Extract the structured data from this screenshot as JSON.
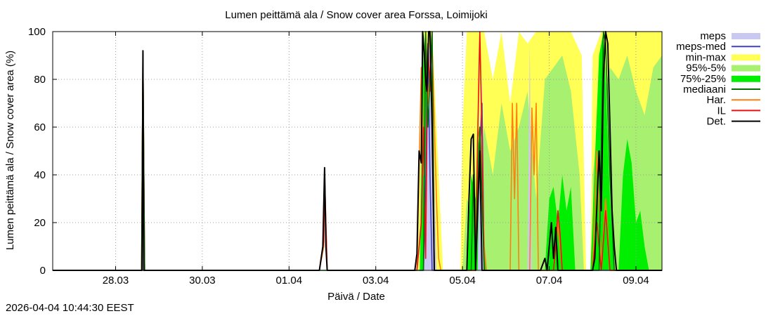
{
  "chart_data": {
    "type": "area",
    "title": "Lumen peittämä ala / Snow cover area Forssa, Loimijoki",
    "xlabel": "Päivä / Date",
    "ylabel": "Lumen peittämä ala / Snow cover area (%)",
    "ylim": [
      0,
      100
    ],
    "y_ticks": [
      "0",
      "20",
      "40",
      "60",
      "80",
      "100"
    ],
    "xlim_days": [
      -1.45,
      12.6
    ],
    "x_ticks": [
      {
        "day": 0,
        "label": "28.03"
      },
      {
        "day": 2,
        "label": "30.03"
      },
      {
        "day": 4,
        "label": "01.04"
      },
      {
        "day": 6,
        "label": "03.04"
      },
      {
        "day": 8,
        "label": "05.04"
      },
      {
        "day": 10,
        "label": "07.04"
      },
      {
        "day": 12,
        "label": "09.04"
      }
    ],
    "grid": true,
    "legend_position": "right",
    "legend": [
      {
        "key": "meps",
        "label": "meps",
        "color": "#c8c8f0",
        "style": "band"
      },
      {
        "key": "meps_med",
        "label": "meps-med",
        "color": "#4040c0",
        "style": "line"
      },
      {
        "key": "minmax",
        "label": "min-max",
        "color": "#ffff55",
        "style": "band"
      },
      {
        "key": "p95_5",
        "label": "95%-5%",
        "color": "#a8f070",
        "style": "band"
      },
      {
        "key": "p75_25",
        "label": "75%-25%",
        "color": "#00ee00",
        "style": "band"
      },
      {
        "key": "mediaani",
        "label": "mediaani",
        "color": "#007000",
        "style": "line"
      },
      {
        "key": "har",
        "label": "Har.",
        "color": "#ff8010",
        "style": "line"
      },
      {
        "key": "il",
        "label": "IL",
        "color": "#ee1010",
        "style": "line"
      },
      {
        "key": "det",
        "label": "Det.",
        "color": "#000000",
        "style": "line"
      }
    ],
    "series": {
      "minmax": [
        {
          "x": [
            6.95,
            7.0,
            7.05,
            7.1,
            7.15,
            7.2,
            7.3,
            7.45,
            7.55
          ],
          "upper": [
            0,
            30,
            80,
            100,
            100,
            100,
            100,
            40,
            0
          ],
          "lower": [
            0,
            0,
            0,
            0,
            0,
            0,
            0,
            0,
            0
          ]
        },
        {
          "x": [
            7.95,
            8.0,
            8.1,
            8.3,
            8.5,
            8.7,
            8.9,
            9.1,
            9.3,
            9.5,
            9.7,
            9.9,
            10.1,
            10.3,
            10.5,
            10.75,
            10.85
          ],
          "upper": [
            0,
            60,
            100,
            100,
            100,
            80,
            100,
            70,
            100,
            95,
            100,
            100,
            100,
            100,
            100,
            90,
            0
          ],
          "lower": [
            0,
            0,
            0,
            0,
            0,
            0,
            0,
            0,
            0,
            0,
            0,
            0,
            0,
            0,
            0,
            0,
            0
          ]
        },
        {
          "x": [
            10.95,
            11.0,
            11.2,
            11.4,
            11.6,
            11.8,
            12.0,
            12.3,
            12.6
          ],
          "upper": [
            0,
            90,
            100,
            100,
            100,
            100,
            100,
            100,
            100
          ],
          "lower": [
            0,
            0,
            0,
            0,
            0,
            0,
            0,
            0,
            0
          ]
        }
      ],
      "p95_5": [
        {
          "x": [
            7.0,
            7.05,
            7.1,
            7.15,
            7.2,
            7.28,
            7.35
          ],
          "upper": [
            0,
            60,
            100,
            95,
            90,
            40,
            0
          ],
          "lower": [
            0,
            0,
            0,
            0,
            0,
            0,
            0
          ]
        },
        {
          "x": [
            8.0,
            8.1,
            8.3,
            8.5,
            8.7,
            8.9,
            9.1,
            9.3,
            9.5,
            9.7,
            9.9,
            10.1,
            10.3,
            10.5,
            10.7,
            10.8
          ],
          "upper": [
            0,
            30,
            20,
            60,
            40,
            70,
            50,
            60,
            75,
            30,
            80,
            85,
            90,
            75,
            40,
            0
          ],
          "lower": [
            0,
            0,
            0,
            0,
            0,
            0,
            0,
            0,
            0,
            0,
            0,
            0,
            0,
            0,
            0,
            0
          ]
        },
        {
          "x": [
            11.0,
            11.2,
            11.4,
            11.6,
            11.8,
            12.0,
            12.2,
            12.4,
            12.6
          ],
          "upper": [
            40,
            70,
            85,
            80,
            90,
            75,
            65,
            85,
            90
          ],
          "lower": [
            0,
            0,
            0,
            0,
            0,
            0,
            0,
            0,
            0
          ]
        }
      ],
      "p75_25": [
        {
          "x": [
            7.02,
            7.05,
            7.1,
            7.15,
            7.2,
            7.25
          ],
          "upper": [
            0,
            40,
            90,
            100,
            60,
            0
          ],
          "lower": [
            0,
            0,
            0,
            0,
            0,
            0
          ]
        },
        {
          "x": [
            8.1,
            8.2,
            8.3,
            8.35,
            8.4,
            8.5,
            8.55
          ],
          "upper": [
            0,
            40,
            30,
            60,
            45,
            10,
            0
          ],
          "lower": [
            0,
            0,
            0,
            0,
            0,
            0,
            0
          ]
        },
        {
          "x": [
            9.9,
            10.0,
            10.1,
            10.2,
            10.3,
            10.4,
            10.5,
            10.6
          ],
          "upper": [
            0,
            30,
            35,
            20,
            40,
            25,
            35,
            0
          ],
          "lower": [
            0,
            0,
            0,
            0,
            0,
            0,
            0,
            0
          ]
        },
        {
          "x": [
            10.95,
            11.05,
            11.15,
            11.25,
            11.3,
            11.4,
            11.5
          ],
          "upper": [
            0,
            45,
            90,
            100,
            80,
            30,
            0
          ],
          "lower": [
            0,
            0,
            0,
            0,
            0,
            0,
            0
          ]
        },
        {
          "x": [
            11.6,
            11.7,
            11.8,
            11.9,
            12.0,
            12.1,
            12.2,
            12.3
          ],
          "upper": [
            0,
            40,
            55,
            45,
            20,
            25,
            10,
            0
          ],
          "lower": [
            0,
            0,
            0,
            0,
            0,
            0,
            0,
            0
          ]
        }
      ],
      "meps": [
        {
          "x": [
            7.1,
            7.15,
            7.2,
            7.25,
            7.3,
            7.35,
            7.4
          ],
          "upper": [
            0,
            50,
            100,
            90,
            100,
            40,
            0
          ],
          "lower": [
            0,
            0,
            0,
            0,
            0,
            0,
            0
          ]
        },
        {
          "x": [
            8.35,
            8.4,
            8.45,
            8.5
          ],
          "upper": [
            0,
            60,
            80,
            0
          ],
          "lower": [
            0,
            0,
            0,
            0
          ]
        },
        {
          "x": [
            9.5,
            9.55,
            9.6
          ],
          "upper": [
            0,
            95,
            0
          ],
          "lower": [
            0,
            0,
            0
          ]
        }
      ],
      "meps_med": {
        "x": [
          7.0,
          7.1,
          7.15,
          7.2,
          7.25,
          7.3,
          7.35,
          8.3,
          8.4,
          8.45,
          8.5,
          12.6
        ],
        "y": [
          0,
          0,
          35,
          95,
          40,
          0,
          0,
          0,
          50,
          70,
          0,
          0
        ]
      },
      "mediaani": {
        "x": [
          -1.45,
          0.6,
          0.63,
          0.67,
          7.0,
          7.1,
          7.15,
          7.2,
          7.3,
          7.35,
          8.2,
          8.25,
          8.3,
          8.4,
          8.5,
          11.15,
          11.25,
          11.3,
          11.4,
          11.5,
          12.6
        ],
        "y": [
          0,
          0,
          92,
          0,
          0,
          0,
          100,
          60,
          100,
          0,
          0,
          40,
          0,
          60,
          0,
          0,
          100,
          95,
          40,
          0,
          0
        ]
      },
      "har": {
        "x": [
          -1.45,
          0.6,
          0.63,
          0.67,
          4.7,
          4.8,
          4.82,
          4.88,
          6.95,
          7.05,
          7.1,
          7.15,
          7.2,
          7.3,
          7.4,
          7.45,
          7.5,
          8.3,
          8.35,
          8.4,
          8.45,
          8.5,
          8.55,
          8.6,
          9.1,
          9.15,
          9.2,
          9.25,
          9.3,
          9.55,
          9.6,
          9.65,
          9.7,
          9.75,
          10.1,
          10.2,
          10.3,
          10.4,
          11.0,
          11.1,
          11.2,
          11.3,
          11.4,
          12.6
        ],
        "y": [
          0,
          0,
          91,
          0,
          0,
          10,
          40,
          0,
          0,
          85,
          40,
          100,
          70,
          95,
          30,
          5,
          0,
          0,
          55,
          60,
          40,
          10,
          0,
          0,
          0,
          70,
          30,
          70,
          0,
          0,
          68,
          40,
          70,
          0,
          0,
          20,
          0,
          0,
          0,
          50,
          0,
          30,
          0,
          0
        ]
      },
      "il": {
        "x": [
          -1.45,
          0.6,
          0.63,
          0.67,
          4.7,
          4.8,
          4.82,
          4.88,
          6.95,
          7.05,
          7.1,
          7.15,
          7.2,
          7.25,
          7.3,
          7.35,
          7.45,
          8.3,
          8.35,
          8.4,
          8.45,
          8.5,
          8.55,
          10.1,
          10.15,
          10.2,
          10.25,
          10.3,
          11.0,
          11.1,
          11.2,
          11.3,
          11.4,
          12.6
        ],
        "y": [
          0,
          0,
          91,
          0,
          0,
          12,
          40,
          0,
          0,
          20,
          60,
          5,
          95,
          75,
          100,
          0,
          0,
          0,
          55,
          100,
          55,
          0,
          0,
          0,
          10,
          25,
          15,
          0,
          0,
          20,
          0,
          25,
          0,
          0
        ]
      },
      "det": {
        "x": [
          -1.45,
          0.57,
          0.61,
          0.63,
          0.65,
          0.69,
          4.7,
          4.78,
          4.82,
          4.85,
          4.88,
          6.9,
          6.95,
          7.0,
          7.05,
          7.08,
          7.12,
          7.15,
          7.18,
          7.22,
          7.25,
          7.3,
          7.35,
          7.4,
          7.45,
          8.1,
          8.15,
          8.2,
          8.25,
          8.3,
          8.4,
          8.45,
          8.5,
          9.8,
          9.9,
          9.95,
          10.0,
          10.05,
          10.1,
          10.15,
          10.2,
          10.3,
          10.35,
          10.4,
          11.0,
          11.05,
          11.15,
          11.2,
          11.25,
          11.3,
          11.35,
          11.4,
          11.45,
          11.5,
          11.55,
          12.6
        ],
        "y": [
          0,
          0,
          0,
          92,
          0,
          0,
          0,
          10,
          43,
          10,
          0,
          0,
          7,
          50,
          45,
          100,
          90,
          80,
          75,
          100,
          100,
          60,
          0,
          0,
          0,
          0,
          30,
          55,
          57,
          0,
          50,
          0,
          0,
          0,
          5,
          0,
          10,
          20,
          5,
          18,
          0,
          0,
          0,
          0,
          0,
          5,
          50,
          25,
          80,
          100,
          95,
          60,
          25,
          10,
          0,
          0
        ]
      }
    }
  },
  "timestamp": "2026-04-04 10:44:30 EEST"
}
